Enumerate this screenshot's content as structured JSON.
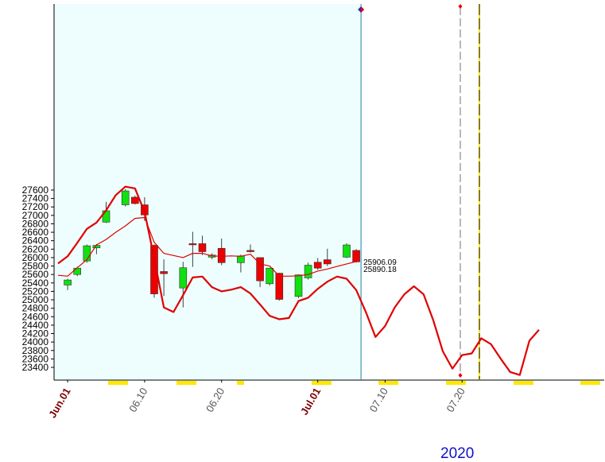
{
  "chart_data": {
    "type": "candlestick",
    "title": "",
    "xlabel": "2020",
    "ylabel": "",
    "ylim": [
      23250,
      27700
    ],
    "y_ticks": [
      23400,
      23600,
      23800,
      24000,
      24200,
      24400,
      24600,
      24800,
      25000,
      25200,
      25400,
      25600,
      25800,
      26000,
      26200,
      26400,
      26600,
      26800,
      27000,
      27200,
      27400,
      27600
    ],
    "x_tick_labels": [
      {
        "day": 1,
        "label": "Jun.01",
        "month_start": true
      },
      {
        "day": 9,
        "label": "06.10",
        "month_start": false
      },
      {
        "day": 17,
        "label": "06.20",
        "month_start": false
      },
      {
        "day": 27,
        "label": "Jul.01",
        "month_start": true
      },
      {
        "day": 34,
        "label": "07.10",
        "month_start": false
      },
      {
        "day": 42,
        "label": "07.20",
        "month_start": false
      }
    ],
    "year_label": "2020",
    "price_labels": [
      "25906.09",
      "25890.18"
    ],
    "candles": [
      {
        "day": 1,
        "open": 25350,
        "high": 25500,
        "low": 25230,
        "close": 25470
      },
      {
        "day": 2,
        "open": 25600,
        "high": 25780,
        "low": 25560,
        "close": 25750
      },
      {
        "day": 3,
        "open": 25920,
        "high": 26310,
        "low": 25880,
        "close": 26280
      },
      {
        "day": 4,
        "open": 26230,
        "high": 26320,
        "low": 26080,
        "close": 26290
      },
      {
        "day": 5,
        "open": 26840,
        "high": 27320,
        "low": 26820,
        "close": 27110
      },
      {
        "day": 7,
        "open": 27250,
        "high": 27620,
        "low": 27210,
        "close": 27580
      },
      {
        "day": 8,
        "open": 27430,
        "high": 27470,
        "low": 27260,
        "close": 27280
      },
      {
        "day": 9,
        "open": 27250,
        "high": 27430,
        "low": 26870,
        "close": 27010
      },
      {
        "day": 10,
        "open": 26290,
        "high": 26310,
        "low": 25050,
        "close": 25140
      },
      {
        "day": 11,
        "open": 25670,
        "high": 25960,
        "low": 25090,
        "close": 25620
      },
      {
        "day": 13,
        "open": 25280,
        "high": 25900,
        "low": 24820,
        "close": 25760
      },
      {
        "day": 14,
        "open": 26330,
        "high": 26610,
        "low": 25780,
        "close": 26310
      },
      {
        "day": 15,
        "open": 26330,
        "high": 26520,
        "low": 26060,
        "close": 26140
      },
      {
        "day": 16,
        "open": 26010,
        "high": 26100,
        "low": 25960,
        "close": 26060
      },
      {
        "day": 17,
        "open": 26220,
        "high": 26450,
        "low": 25820,
        "close": 25880
      },
      {
        "day": 19,
        "open": 25880,
        "high": 26070,
        "low": 25650,
        "close": 26040
      },
      {
        "day": 20,
        "open": 26170,
        "high": 26310,
        "low": 26120,
        "close": 26140
      },
      {
        "day": 21,
        "open": 26000,
        "high": 26000,
        "low": 25300,
        "close": 25450
      },
      {
        "day": 22,
        "open": 25380,
        "high": 25760,
        "low": 25340,
        "close": 25750
      },
      {
        "day": 23,
        "open": 25630,
        "high": 25640,
        "low": 24980,
        "close": 25010
      },
      {
        "day": 25,
        "open": 25080,
        "high": 25600,
        "low": 25040,
        "close": 25590
      },
      {
        "day": 26,
        "open": 25520,
        "high": 25880,
        "low": 25480,
        "close": 25820
      },
      {
        "day": 27,
        "open": 25890,
        "high": 25990,
        "low": 25710,
        "close": 25750
      },
      {
        "day": 28,
        "open": 25950,
        "high": 26210,
        "low": 25800,
        "close": 25850
      },
      {
        "day": 30,
        "open": 26010,
        "high": 26340,
        "low": 25990,
        "close": 26300
      },
      {
        "day": 31,
        "open": 26170,
        "high": 26200,
        "low": 25880,
        "close": 25900
      }
    ],
    "series": [
      {
        "type": "line",
        "points": [
          [
            0,
            25580
          ],
          [
            1,
            25560
          ],
          [
            2,
            25760
          ],
          [
            3,
            25950
          ],
          [
            4,
            26300
          ],
          [
            5,
            26430
          ],
          [
            6,
            26600
          ],
          [
            7,
            26750
          ],
          [
            8,
            26930
          ],
          [
            9,
            26950
          ],
          [
            10,
            26360
          ],
          [
            11,
            26100
          ],
          [
            12,
            26050
          ],
          [
            13,
            26000
          ],
          [
            14,
            26100
          ],
          [
            15,
            26100
          ],
          [
            16,
            26040
          ],
          [
            17,
            26030
          ],
          [
            18,
            26040
          ],
          [
            19,
            26030
          ],
          [
            20,
            26080
          ],
          [
            21,
            25850
          ],
          [
            22,
            25800
          ],
          [
            23,
            25560
          ],
          [
            24,
            25560
          ],
          [
            25,
            25570
          ],
          [
            26,
            25600
          ],
          [
            27,
            25680
          ],
          [
            28,
            25730
          ],
          [
            29,
            25790
          ],
          [
            30,
            25850
          ],
          [
            31,
            25906
          ]
        ]
      },
      {
        "type": "line",
        "points": [
          [
            0,
            25860
          ],
          [
            1,
            26030
          ],
          [
            2,
            26350
          ],
          [
            3,
            26680
          ],
          [
            4,
            26830
          ],
          [
            5,
            27120
          ],
          [
            6,
            27480
          ],
          [
            7,
            27680
          ],
          [
            8,
            27640
          ],
          [
            9,
            27080
          ],
          [
            10,
            25980
          ],
          [
            11,
            24820
          ],
          [
            12,
            24710
          ],
          [
            13,
            25110
          ],
          [
            14,
            25530
          ],
          [
            15,
            25550
          ],
          [
            16,
            25300
          ],
          [
            17,
            25200
          ],
          [
            18,
            25240
          ],
          [
            19,
            25300
          ],
          [
            20,
            25150
          ],
          [
            21,
            24890
          ],
          [
            22,
            24620
          ],
          [
            23,
            24540
          ],
          [
            24,
            24570
          ],
          [
            25,
            24970
          ],
          [
            26,
            25050
          ],
          [
            27,
            25260
          ],
          [
            28,
            25430
          ],
          [
            29,
            25550
          ],
          [
            30,
            25500
          ],
          [
            31,
            25230
          ],
          [
            32,
            24710
          ],
          [
            33,
            24120
          ],
          [
            34,
            24380
          ],
          [
            35,
            24820
          ],
          [
            36,
            25130
          ],
          [
            37,
            25320
          ],
          [
            38,
            25130
          ],
          [
            39,
            24520
          ],
          [
            40,
            23780
          ],
          [
            41,
            23370
          ],
          [
            42,
            23690
          ],
          [
            43,
            23730
          ],
          [
            44,
            24090
          ],
          [
            45,
            23950
          ],
          [
            46,
            23610
          ],
          [
            47,
            23290
          ],
          [
            48,
            23220
          ],
          [
            49,
            24030
          ],
          [
            50,
            24290
          ]
        ]
      }
    ],
    "grid": false,
    "colors": {
      "up_candle": "#11e011",
      "down_candle": "#ee0000",
      "line": "#e00000",
      "highlight_area": "#eefefe",
      "month_label": "#800000",
      "axis_label": "#555555",
      "year_label": "#1010cc",
      "weekend_marker": "#ffe800",
      "vline_current": "#2080a0",
      "vline_dashed": "#707070",
      "vline_dashdot": "#101030",
      "diamond_blue": "#2030c0",
      "diamond_red": "#ee0000"
    }
  }
}
